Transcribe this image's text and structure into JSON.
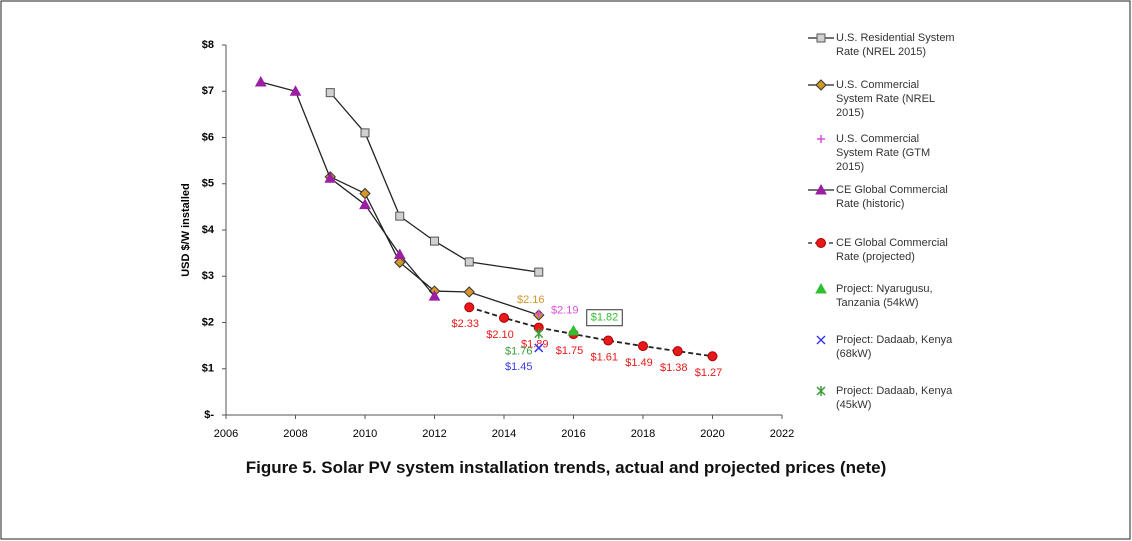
{
  "chart_data": {
    "type": "line",
    "caption": "Figure 5. Solar PV system installation trends, actual and projected prices (nete)",
    "ylabel": "USD $/W installed",
    "xlim": [
      2006,
      2022
    ],
    "xticks": [
      2006,
      2008,
      2010,
      2012,
      2014,
      2016,
      2018,
      2020,
      2022
    ],
    "ylim": [
      0,
      8
    ],
    "yticks": [
      {
        "value": 0,
        "label": "$-"
      },
      {
        "value": 1,
        "label": "$1"
      },
      {
        "value": 2,
        "label": "$2"
      },
      {
        "value": 3,
        "label": "$3"
      },
      {
        "value": 4,
        "label": "$4"
      },
      {
        "value": 5,
        "label": "$5"
      },
      {
        "value": 6,
        "label": "$6"
      },
      {
        "value": 7,
        "label": "$7"
      },
      {
        "value": 8,
        "label": "$8"
      }
    ],
    "grid": false,
    "legend": "right",
    "series": [
      {
        "name": "U.S. Residential System Rate (NREL 2015)",
        "color": "#8a8a8a",
        "marker": "square",
        "line": "solid",
        "x": [
          2009,
          2010,
          2011,
          2012,
          2013,
          2015
        ],
        "values": [
          6.97,
          6.1,
          4.3,
          3.76,
          3.31,
          3.09
        ]
      },
      {
        "name": "U.S. Commercial System Rate (NREL 2015)",
        "color": "#d4962a",
        "marker": "diamond",
        "line": "solid",
        "x": [
          2009,
          2010,
          2011,
          2012,
          2013,
          2015
        ],
        "values": [
          5.15,
          4.79,
          3.3,
          2.68,
          2.66,
          2.16
        ],
        "value_labels": [
          null,
          null,
          null,
          null,
          null,
          "$2.16"
        ]
      },
      {
        "name": "U.S. Commercial System Rate (GTM 2015)",
        "color": "#d94fd9",
        "marker": "plus",
        "line": "none",
        "x": [
          2015
        ],
        "values": [
          2.19
        ],
        "value_labels": [
          "$2.19"
        ]
      },
      {
        "name": "CE Global Commercial Rate (historic)",
        "color": "#9b1fa3",
        "marker": "triangle",
        "line": "solid",
        "x": [
          2007,
          2008,
          2009,
          2010,
          2011,
          2012
        ],
        "values": [
          7.2,
          7.0,
          5.12,
          4.55,
          3.47,
          2.57
        ]
      },
      {
        "name": "CE Global Commercial Rate (projected)",
        "color": "#e8191a",
        "marker": "circle",
        "line": "dashed",
        "x": [
          2013,
          2014,
          2015,
          2016,
          2017,
          2018,
          2019,
          2020
        ],
        "values": [
          2.33,
          2.1,
          1.89,
          1.75,
          1.61,
          1.49,
          1.38,
          1.27
        ],
        "value_labels": [
          "$2.33",
          "$2.10",
          "$1.89",
          "$1.75",
          "$1.61",
          "$1.49",
          "$1.38",
          "$1.27"
        ]
      },
      {
        "name": "Project: Nyarugusu, Tanzania (54kW)",
        "color": "#2fbf2f",
        "marker": "triangle",
        "line": "none",
        "x": [
          2016
        ],
        "values": [
          1.82
        ],
        "value_labels": [
          "$1.82"
        ]
      },
      {
        "name": "Project: Dadaab, Kenya (68kW)",
        "color": "#3a3aee",
        "marker": "x",
        "line": "none",
        "x": [
          2015
        ],
        "values": [
          1.45
        ],
        "value_labels": [
          "$1.45"
        ]
      },
      {
        "name": "Project: Dadaab, Kenya (45kW)",
        "color": "#3d9e3d",
        "marker": "asterisk",
        "line": "none",
        "x": [
          2015
        ],
        "values": [
          1.76
        ],
        "value_labels": [
          "$1.76"
        ]
      }
    ]
  }
}
